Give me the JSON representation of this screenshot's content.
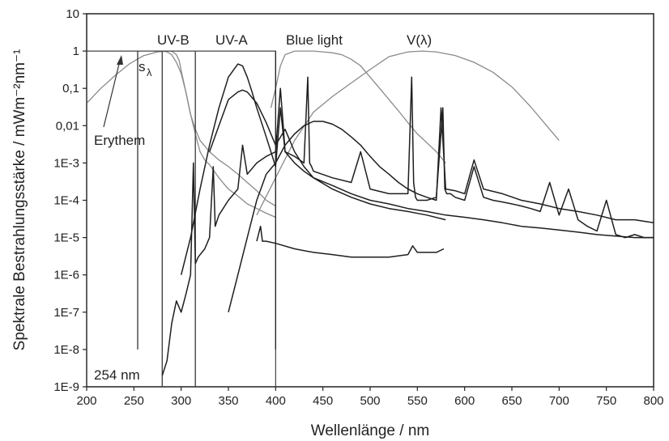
{
  "chart_data": {
    "type": "line",
    "xlabel": "Wellenlänge / nm",
    "ylabel": "Spektrale Bestrahlungsstärke / mWm⁻²nm⁻¹",
    "xlim": [
      200,
      800
    ],
    "ylim": [
      1e-09,
      10
    ],
    "yscale": "log",
    "grid": false,
    "x_ticks": [
      200,
      250,
      300,
      350,
      400,
      450,
      500,
      550,
      600,
      650,
      700,
      750,
      800
    ],
    "x_tick_labels": [
      "200",
      "250",
      "300",
      "350",
      "400",
      "450",
      "500",
      "550",
      "600",
      "650",
      "700",
      "750",
      "800"
    ],
    "y_ticks": [
      1e-09,
      1e-08,
      1e-07,
      1e-06,
      1e-05,
      0.0001,
      0.001,
      0.01,
      0.1,
      1,
      10
    ],
    "y_tick_labels": [
      "1E-9",
      "1E-8",
      "1E-7",
      "1E-6",
      "1E-5",
      "1E-4",
      "1E-3",
      "0,01",
      "0,1",
      "1",
      "10"
    ],
    "annotations": {
      "uvb": "UV-B",
      "uva": "UV-A",
      "blue": "Blue light",
      "vlambda": "V(λ)",
      "erythem": "Erythem",
      "s_main": "s",
      "s_sub": "λ",
      "nm254": "254 nm"
    },
    "reference_curves": [
      {
        "id": "erythem",
        "x": [
          200,
          215,
          230,
          245,
          260,
          275,
          285,
          290,
          295,
          298,
          300,
          305,
          310,
          315,
          320,
          325,
          330,
          335,
          340,
          345,
          350,
          360,
          370,
          380,
          390,
          400
        ],
        "y": [
          0.04,
          0.1,
          0.22,
          0.45,
          0.75,
          0.95,
          1,
          1,
          0.8,
          0.55,
          0.3,
          0.08,
          0.02,
          0.006,
          0.002,
          0.0012,
          0.0009,
          0.0006,
          0.0004,
          0.00028,
          0.0002,
          0.00013,
          8e-05,
          6e-05,
          4.5e-05,
          3.5e-05
        ]
      },
      {
        "id": "s_lambda",
        "x": [
          270,
          275,
          280,
          285,
          290,
          295,
          300,
          305,
          310,
          315,
          320,
          330,
          340,
          350,
          360,
          370,
          380,
          390,
          400
        ],
        "y": [
          1,
          1,
          1,
          0.95,
          0.8,
          0.5,
          0.25,
          0.08,
          0.02,
          0.008,
          0.004,
          0.002,
          0.0012,
          0.0008,
          0.0005,
          0.0003,
          0.00018,
          0.0001,
          7e-05
        ]
      },
      {
        "id": "blue_light",
        "x": [
          395,
          400,
          405,
          410,
          420,
          430,
          440,
          450,
          460,
          470,
          480,
          490,
          500,
          510,
          520,
          530,
          540,
          550,
          560,
          570,
          580
        ],
        "y": [
          0.03,
          0.1,
          0.4,
          0.8,
          1,
          1,
          1,
          0.95,
          0.9,
          0.8,
          0.6,
          0.4,
          0.2,
          0.1,
          0.05,
          0.025,
          0.012,
          0.006,
          0.0035,
          0.002,
          0.001
        ]
      },
      {
        "id": "v_lambda",
        "x": [
          380,
          400,
          420,
          440,
          460,
          480,
          500,
          520,
          540,
          555,
          570,
          590,
          610,
          630,
          650,
          670,
          690,
          700
        ],
        "y": [
          4e-05,
          0.0004,
          0.004,
          0.023,
          0.06,
          0.14,
          0.32,
          0.71,
          0.95,
          1,
          0.95,
          0.76,
          0.5,
          0.27,
          0.11,
          0.032,
          0.008,
          0.004
        ]
      }
    ],
    "boxes": [
      {
        "id": "uvb_box",
        "x": [
          280,
          315
        ],
        "top": 1
      },
      {
        "id": "uva_box",
        "x": [
          315,
          400
        ],
        "top": 1
      },
      {
        "id": "s_box",
        "x": [
          200,
          280
        ],
        "top": 1
      }
    ],
    "markers": [
      {
        "id": "line_254",
        "x": 254,
        "y_low": 1e-08,
        "y_high": 1
      },
      {
        "id": "line_400",
        "x": 400,
        "y_low": 1e-08,
        "y_high": 1
      }
    ],
    "series": [
      {
        "id": "mercury_lamp",
        "x": [
          280,
          285,
          290,
          295,
          300,
          305,
          310,
          313,
          315,
          318,
          325,
          330,
          334,
          336,
          340,
          350,
          360,
          365,
          370,
          380,
          390,
          400,
          405,
          408,
          410,
          420,
          430,
          434,
          436,
          438,
          440,
          460,
          480,
          490,
          500,
          520,
          540,
          544,
          546,
          548,
          550,
          560,
          570,
          577,
          579,
          581,
          585,
          590,
          600,
          610,
          620,
          630,
          640,
          650,
          660,
          670,
          680,
          690,
          700,
          710,
          720,
          730,
          740,
          750,
          760,
          770,
          780,
          790,
          800
        ],
        "y": [
          2e-09,
          5e-09,
          5e-08,
          2e-07,
          1e-07,
          3e-07,
          1e-06,
          0.001,
          2e-06,
          3e-06,
          5e-06,
          1e-05,
          0.0008,
          2e-05,
          4e-05,
          0.0001,
          0.0002,
          0.003,
          0.0005,
          0.001,
          0.0015,
          0.002,
          0.1,
          0.01,
          0.002,
          0.0015,
          0.001,
          0.2,
          0.001,
          0.0008,
          0.0006,
          0.0004,
          0.0003,
          0.002,
          0.0002,
          0.00015,
          0.00015,
          0.2,
          0.0003,
          0.00012,
          0.0001,
          0.0001,
          0.00012,
          0.03,
          0.0002,
          0.00015,
          0.00015,
          0.00012,
          0.0001,
          0.0008,
          0.00012,
          0.0001,
          9e-05,
          8e-05,
          7e-05,
          6e-05,
          5e-05,
          0.0003,
          4e-05,
          0.0002,
          3e-05,
          2e-05,
          1.5e-05,
          0.0001,
          1.2e-05,
          1e-05,
          1.2e-05,
          1e-05,
          1e-05
        ]
      },
      {
        "id": "uva_peak",
        "x": [
          300,
          310,
          320,
          330,
          340,
          350,
          360,
          365,
          370,
          375,
          380,
          390,
          400,
          405,
          410,
          420,
          430,
          440,
          460,
          480,
          500,
          520,
          540,
          560,
          580,
          600,
          620,
          640,
          660,
          680,
          700,
          720,
          740,
          760,
          780,
          800
        ],
        "y": [
          1e-06,
          1e-05,
          0.0002,
          0.003,
          0.03,
          0.2,
          0.45,
          0.4,
          0.2,
          0.08,
          0.03,
          0.005,
          0.0008,
          0.03,
          0.002,
          0.001,
          0.0006,
          0.0004,
          0.00025,
          0.00015,
          0.0001,
          8e-05,
          6e-05,
          5e-05,
          4e-05,
          3.5e-05,
          3e-05,
          2.5e-05,
          2e-05,
          1.8e-05,
          1.6e-05,
          1.4e-05,
          1.2e-05,
          1.1e-05,
          1e-05,
          1e-05
        ]
      },
      {
        "id": "blue_led",
        "x": [
          350,
          360,
          370,
          380,
          390,
          400,
          410,
          420,
          430,
          440,
          450,
          460,
          470,
          480,
          490,
          500,
          510,
          520,
          530,
          540,
          550,
          560,
          570,
          575,
          580,
          590,
          600,
          610,
          620,
          640,
          660,
          680,
          700,
          720,
          740,
          760,
          780,
          800
        ],
        "y": [
          1e-07,
          1e-06,
          1e-05,
          0.0001,
          0.0005,
          0.001,
          0.003,
          0.006,
          0.01,
          0.013,
          0.013,
          0.011,
          0.008,
          0.005,
          0.003,
          0.0015,
          0.0008,
          0.0005,
          0.0003,
          0.0002,
          0.00015,
          0.00012,
          0.0001,
          0.03,
          0.0002,
          0.00018,
          0.00015,
          0.0012,
          0.0002,
          0.00015,
          0.0001,
          8e-05,
          6e-05,
          5e-05,
          4e-05,
          3e-05,
          3e-05,
          2.5e-05
        ]
      },
      {
        "id": "tail_low",
        "x": [
          380,
          384,
          386,
          390,
          400,
          420,
          440,
          460,
          480,
          500,
          520,
          540,
          545,
          550,
          560,
          570,
          578
        ],
        "y": [
          8e-06,
          2e-05,
          8e-06,
          8e-06,
          7e-06,
          5e-06,
          4e-06,
          3.5e-06,
          3e-06,
          3e-06,
          3e-06,
          3.5e-06,
          6e-06,
          4e-06,
          4e-06,
          4e-06,
          5e-06
        ]
      },
      {
        "id": "broad_uva",
        "x": [
          330,
          340,
          350,
          360,
          365,
          370,
          380,
          390,
          400,
          410,
          420,
          430,
          440,
          460,
          480,
          500,
          520,
          540,
          560,
          580
        ],
        "y": [
          0.002,
          0.01,
          0.05,
          0.08,
          0.09,
          0.08,
          0.04,
          0.012,
          0.003,
          0.008,
          0.002,
          0.0008,
          0.0004,
          0.0002,
          0.00012,
          8e-05,
          6e-05,
          5e-05,
          4e-05,
          3e-05
        ]
      }
    ]
  }
}
